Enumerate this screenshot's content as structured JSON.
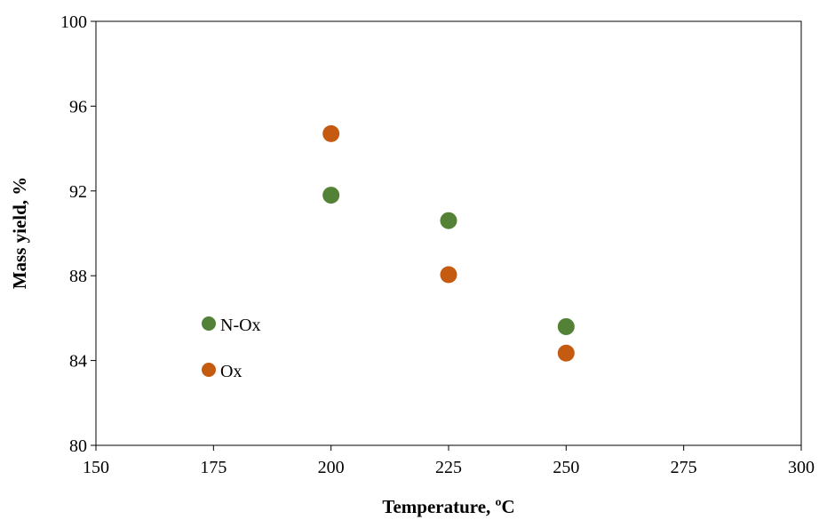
{
  "chart_data": {
    "type": "scatter",
    "title": "",
    "xlabel": "Temperature, ºC",
    "ylabel": "Mass yield, %",
    "xlim": [
      150,
      300
    ],
    "ylim": [
      80,
      100
    ],
    "xticks": [
      150,
      175,
      200,
      225,
      250,
      275,
      300
    ],
    "yticks": [
      80,
      84,
      88,
      92,
      96,
      100
    ],
    "grid": false,
    "legend": "inside-bottom-left",
    "series": [
      {
        "name": "N-Ox",
        "color": "#538135",
        "x": [
          200,
          225,
          250
        ],
        "y": [
          91.8,
          90.6,
          85.6
        ]
      },
      {
        "name": "Ox",
        "color": "#C55A11",
        "x": [
          200,
          225,
          250
        ],
        "y": [
          94.7,
          88.05,
          84.35
        ]
      }
    ]
  }
}
